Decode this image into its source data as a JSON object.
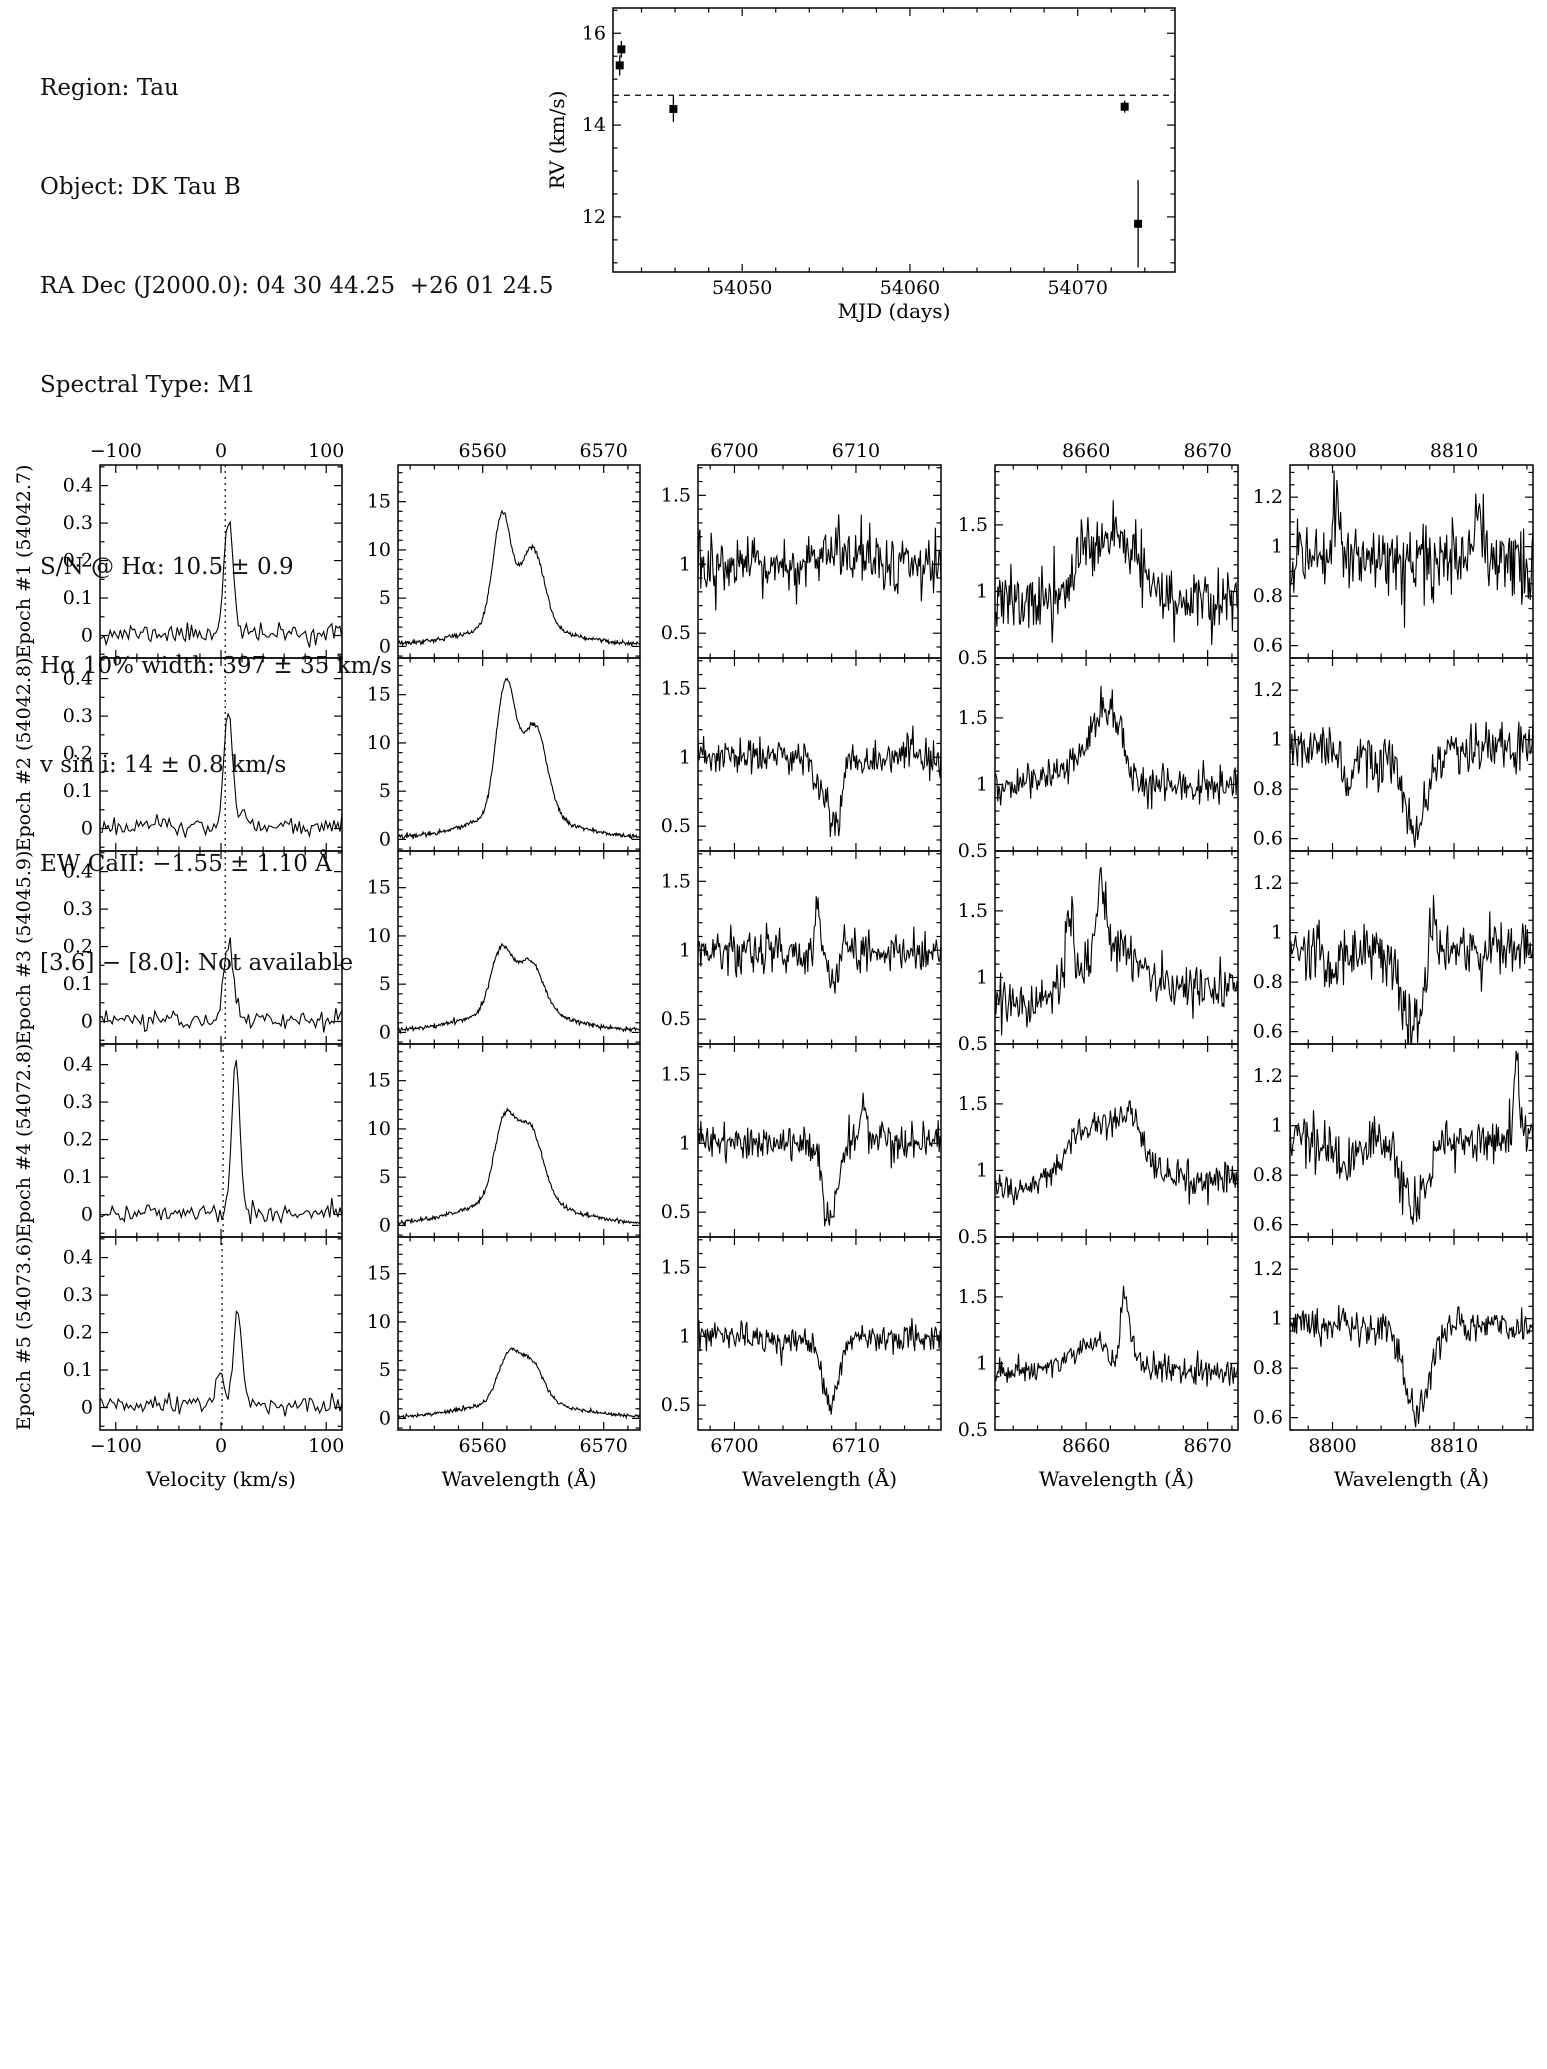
{
  "info": {
    "region": "Region: Tau",
    "object": "Object: DK Tau B",
    "radec": "RA Dec (J2000.0): 04 30 44.25  +26 01 24.5",
    "sptype": "Spectral Type: M1",
    "sn_ha": "S/N @ Hα: 10.5 ± 0.9",
    "ha_width": "Hα 10% width: 397 ± 35 km/s",
    "vsini": "v sin i: 14 ± 0.8 km/s",
    "ew_caii": "EW CaII: −1.55 ± 1.10 Å",
    "color_36_80": "[3.6] − [8.0]: Not available"
  },
  "chart_data": {
    "rv_plot": {
      "type": "scatter",
      "xlabel": "MJD (days)",
      "ylabel": "RV (km/s)",
      "xlim": [
        54042.3,
        54075.8
      ],
      "ylim": [
        10.8,
        16.55
      ],
      "xticks": [
        54050,
        54060,
        54070
      ],
      "xminor": 2,
      "yticks": [
        12,
        14,
        16
      ],
      "yminor": 0.5,
      "mean_rv": 14.65,
      "points": [
        {
          "mjd": 54042.7,
          "rv": 15.3,
          "err": 0.22
        },
        {
          "mjd": 54042.8,
          "rv": 15.65,
          "err": 0.18
        },
        {
          "mjd": 54045.9,
          "rv": 14.35,
          "err": 0.28
        },
        {
          "mjd": 54072.8,
          "rv": 14.4,
          "err": 0.13
        },
        {
          "mjd": 54073.6,
          "rv": 11.85,
          "err": 0.95
        }
      ]
    },
    "grid": {
      "type": "line",
      "row_labels": [
        "Epoch #1 (54042.7)",
        "Epoch #2 (54042.8)",
        "Epoch #3 (54045.9)",
        "Epoch #4 (54072.8)",
        "Epoch #5 (54073.6)"
      ],
      "col_xlabels": [
        "Velocity (km/s)",
        "Wavelength (Å)",
        "Wavelength (Å)",
        "Wavelength (Å)",
        "Wavelength (Å)"
      ],
      "cols": [
        {
          "xlim": [
            -115,
            115
          ],
          "xticks": [
            -100,
            0,
            100
          ],
          "xminor": 20,
          "ylim": [
            -0.06,
            0.455
          ],
          "yticks": [
            0,
            0.1,
            0.2,
            0.3,
            0.4
          ],
          "yminor": 0.05,
          "npoints": 120
        },
        {
          "xlim": [
            6553,
            6573
          ],
          "xticks": [
            6560,
            6570
          ],
          "xminor": 2,
          "ylim": [
            -1.2,
            18.8
          ],
          "yticks": [
            0,
            5,
            10,
            15
          ],
          "yminor": 1,
          "npoints": 320
        },
        {
          "xlim": [
            6697,
            6717
          ],
          "xticks": [
            6700,
            6710
          ],
          "xminor": 2,
          "ylim": [
            0.32,
            1.72
          ],
          "yticks": [
            0.5,
            1,
            1.5
          ],
          "yminor": 0.1,
          "npoints": 260
        },
        {
          "xlim": [
            8652.5,
            8672.5
          ],
          "xticks": [
            8660,
            8670
          ],
          "xminor": 2,
          "ylim": [
            0.5,
            1.95
          ],
          "yticks": [
            0.5,
            1,
            1.5
          ],
          "yminor": 0.1,
          "npoints": 260
        },
        {
          "xlim": [
            8796.5,
            8816.5
          ],
          "xticks": [
            8800,
            8810
          ],
          "xminor": 2,
          "ylim": [
            0.55,
            1.33
          ],
          "yticks": [
            0.6,
            0.8,
            1,
            1.2
          ],
          "yminor": 0.05,
          "npoints": 260
        }
      ],
      "panels": [
        [
          {
            "seed": 11,
            "baseline": 0.005,
            "noise": 0.013,
            "vline": 4,
            "features": [
              {
                "c": 7,
                "h": 0.315,
                "w": 4.2
              }
            ]
          },
          {
            "seed": 12,
            "baseline": 0.2,
            "noise": 0.12,
            "features": [
              {
                "c": 6561.6,
                "h": 11.5,
                "w": 0.75
              },
              {
                "c": 6564.1,
                "h": 8.2,
                "w": 0.95
              },
              {
                "c": 6562.8,
                "h": 2.0,
                "w": 4
              }
            ]
          },
          {
            "seed": 13,
            "baseline": 0.97,
            "noise": 0.11,
            "features": [
              {
                "c": 6709.5,
                "h": 0.12,
                "w": 2
              }
            ]
          },
          {
            "seed": 14,
            "baseline": 0.93,
            "noise": 0.12,
            "features": [
              {
                "c": 8662.4,
                "h": 0.5,
                "w": 1.8
              },
              {
                "c": 8660,
                "h": 0.22,
                "w": 0.9
              }
            ]
          },
          {
            "seed": 15,
            "baseline": 0.95,
            "noise": 0.08,
            "features": [
              {
                "c": 8800.3,
                "h": 0.22,
                "w": 0.3
              },
              {
                "c": 8812,
                "h": 0.18,
                "w": 0.3
              }
            ]
          }
        ],
        [
          {
            "seed": 21,
            "baseline": 0.005,
            "noise": 0.013,
            "vline": 4,
            "features": [
              {
                "c": 7,
                "h": 0.3,
                "w": 4.2
              },
              {
                "c": 22,
                "h": 0.028,
                "w": 5
              }
            ]
          },
          {
            "seed": 22,
            "baseline": 0.2,
            "noise": 0.12,
            "features": [
              {
                "c": 6561.9,
                "h": 13.6,
                "w": 0.8
              },
              {
                "c": 6564.3,
                "h": 9.4,
                "w": 1.0
              },
              {
                "c": 6563,
                "h": 2.3,
                "w": 4
              }
            ]
          },
          {
            "seed": 23,
            "baseline": 1.0,
            "noise": 0.07,
            "features": [
              {
                "c": 6708.2,
                "h": -0.5,
                "w": 0.55
              },
              {
                "c": 6707.0,
                "h": -0.18,
                "w": 0.4
              }
            ]
          },
          {
            "seed": 24,
            "baseline": 0.98,
            "noise": 0.07,
            "features": [
              {
                "c": 8661.8,
                "h": 0.55,
                "w": 1.5
              },
              {
                "c": 8663.8,
                "h": -0.15,
                "w": 0.7
              },
              {
                "c": 8658,
                "h": 0.1,
                "w": 2
              }
            ]
          },
          {
            "seed": 25,
            "baseline": 0.96,
            "noise": 0.05,
            "features": [
              {
                "c": 8806.9,
                "h": -0.33,
                "w": 0.9
              },
              {
                "c": 8801.2,
                "h": -0.15,
                "w": 0.5
              },
              {
                "c": 8803.5,
                "h": -0.1,
                "w": 0.4
              }
            ]
          }
        ],
        [
          {
            "seed": 31,
            "baseline": 0.005,
            "noise": 0.012,
            "vline": 4,
            "features": [
              {
                "c": 7,
                "h": 0.205,
                "w": 4.5
              }
            ]
          },
          {
            "seed": 32,
            "baseline": 0.2,
            "noise": 0.12,
            "features": [
              {
                "c": 6561.5,
                "h": 6.3,
                "w": 0.85
              },
              {
                "c": 6563.9,
                "h": 5.3,
                "w": 1.1
              },
              {
                "c": 6562.7,
                "h": 2.0,
                "w": 4
              }
            ]
          },
          {
            "seed": 33,
            "baseline": 0.99,
            "noise": 0.08,
            "features": [
              {
                "c": 6708.0,
                "h": -0.22,
                "w": 0.5
              },
              {
                "c": 6706.9,
                "h": 0.32,
                "w": 0.25
              }
            ]
          },
          {
            "seed": 34,
            "baseline": 0.9,
            "noise": 0.1,
            "features": [
              {
                "c": 8662,
                "h": 0.35,
                "w": 2.2
              },
              {
                "c": 8658.6,
                "h": 0.45,
                "w": 0.3
              },
              {
                "c": 8661.2,
                "h": 0.5,
                "w": 0.35
              },
              {
                "c": 8655,
                "h": -0.12,
                "w": 1.5
              }
            ]
          },
          {
            "seed": 35,
            "baseline": 0.93,
            "noise": 0.06,
            "features": [
              {
                "c": 8806.6,
                "h": -0.3,
                "w": 1.0
              },
              {
                "c": 8808.2,
                "h": 0.2,
                "w": 0.3
              },
              {
                "c": 8800,
                "h": -0.1,
                "w": 0.6
              }
            ]
          }
        ],
        [
          {
            "seed": 41,
            "baseline": 0.005,
            "noise": 0.012,
            "vline": 2,
            "features": [
              {
                "c": 14,
                "h": 0.4,
                "w": 3.8
              }
            ]
          },
          {
            "seed": 42,
            "baseline": 0.2,
            "noise": 0.12,
            "features": [
              {
                "c": 6561.8,
                "h": 7.9,
                "w": 0.85
              },
              {
                "c": 6563.9,
                "h": 7.4,
                "w": 1.05
              },
              {
                "c": 6562.8,
                "h": 2.6,
                "w": 4
              }
            ]
          },
          {
            "seed": 43,
            "baseline": 1.0,
            "noise": 0.07,
            "features": [
              {
                "c": 6707.9,
                "h": -0.55,
                "w": 0.6
              },
              {
                "c": 6710.6,
                "h": 0.3,
                "w": 0.25
              }
            ]
          },
          {
            "seed": 44,
            "baseline": 0.93,
            "noise": 0.06,
            "features": [
              {
                "c": 8661,
                "h": 0.42,
                "w": 2.5
              },
              {
                "c": 8663.6,
                "h": 0.25,
                "w": 0.8
              },
              {
                "c": 8655,
                "h": -0.1,
                "w": 2
              }
            ]
          },
          {
            "seed": 45,
            "baseline": 0.94,
            "noise": 0.05,
            "features": [
              {
                "c": 8806.8,
                "h": -0.27,
                "w": 1.0
              },
              {
                "c": 8815.2,
                "h": 0.38,
                "w": 0.2
              },
              {
                "c": 8801,
                "h": -0.12,
                "w": 0.6
              }
            ]
          }
        ],
        [
          {
            "seed": 51,
            "baseline": 0.005,
            "noise": 0.012,
            "vline": 1,
            "features": [
              {
                "c": 16,
                "h": 0.26,
                "w": 4.0
              },
              {
                "c": -1,
                "h": 0.085,
                "w": 4.5
              }
            ]
          },
          {
            "seed": 52,
            "baseline": 0.15,
            "noise": 0.1,
            "features": [
              {
                "c": 6562.1,
                "h": 4.5,
                "w": 0.85
              },
              {
                "c": 6564.0,
                "h": 4.0,
                "w": 1.0
              },
              {
                "c": 6563,
                "h": 1.7,
                "w": 4
              }
            ]
          },
          {
            "seed": 53,
            "baseline": 1.0,
            "noise": 0.05,
            "features": [
              {
                "c": 6707.9,
                "h": -0.5,
                "w": 0.7
              },
              {
                "c": 6704,
                "h": -0.07,
                "w": 1
              }
            ]
          },
          {
            "seed": 54,
            "baseline": 0.94,
            "noise": 0.05,
            "features": [
              {
                "c": 8663.2,
                "h": 0.5,
                "w": 0.35
              },
              {
                "c": 8661,
                "h": 0.22,
                "w": 2
              },
              {
                "c": 8662.3,
                "h": -0.12,
                "w": 0.5
              }
            ]
          },
          {
            "seed": 55,
            "baseline": 0.97,
            "noise": 0.035,
            "features": [
              {
                "c": 8806.9,
                "h": -0.35,
                "w": 1.0
              }
            ]
          }
        ]
      ]
    }
  }
}
